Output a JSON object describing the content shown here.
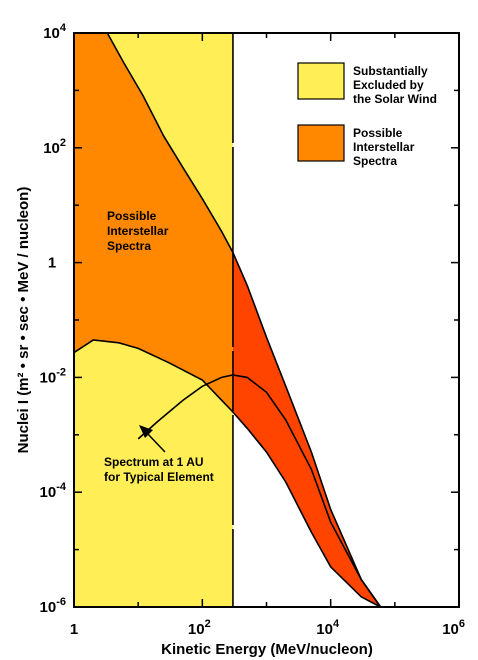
{
  "chart_data": {
    "type": "area",
    "xlabel": "Kinetic Energy (MeV/nucleon)",
    "ylabel": "Nuclei I (m² • sr • sec • MeV / nucleon)",
    "x_scale": "log",
    "y_scale": "log",
    "xlim": [
      1,
      1000000
    ],
    "ylim": [
      1e-06,
      10000
    ],
    "x_ticks": [
      {
        "value": 1,
        "base": "1",
        "exp": ""
      },
      {
        "value": 100,
        "base": "10",
        "exp": "2"
      },
      {
        "value": 10000,
        "base": "10",
        "exp": "4"
      },
      {
        "value": 1000000,
        "base": "10",
        "exp": "6"
      }
    ],
    "y_ticks": [
      {
        "value": 10000,
        "base": "10",
        "exp": "4"
      },
      {
        "value": 100,
        "base": "10",
        "exp": "2"
      },
      {
        "value": 1,
        "base": "1",
        "exp": ""
      },
      {
        "value": 0.01,
        "base": "10",
        "exp": "-2"
      },
      {
        "value": 0.0001,
        "base": "10",
        "exp": "-4"
      },
      {
        "value": 1e-06,
        "base": "10",
        "exp": "-6"
      }
    ],
    "excluded_region_upper_energy": 300,
    "series": [
      {
        "role": "interstellar-upper-bound",
        "points": [
          [
            3.3,
            10000
          ],
          [
            6,
            3000
          ],
          [
            12,
            800
          ],
          [
            25,
            160
          ],
          [
            50,
            45
          ],
          [
            100,
            13
          ],
          [
            200,
            3.5
          ],
          [
            300,
            1.5
          ],
          [
            500,
            0.4
          ],
          [
            1000,
            0.05
          ],
          [
            2000,
            0.007
          ],
          [
            5000,
            0.0005
          ],
          [
            10000,
            5e-05
          ],
          [
            30000,
            3e-06
          ],
          [
            60000,
            1e-06
          ]
        ]
      },
      {
        "role": "interstellar-lower-bound",
        "points": [
          [
            1,
            0.027
          ],
          [
            2,
            0.045
          ],
          [
            5,
            0.04
          ],
          [
            10,
            0.032
          ],
          [
            30,
            0.018
          ],
          [
            100,
            0.009
          ],
          [
            200,
            0.004
          ],
          [
            300,
            0.0025
          ],
          [
            500,
            0.0013
          ],
          [
            1000,
            0.0005
          ],
          [
            2000,
            0.00015
          ],
          [
            5000,
            2e-05
          ],
          [
            10000,
            5e-06
          ],
          [
            30000,
            1.5e-06
          ],
          [
            60000,
            1e-06
          ]
        ]
      },
      {
        "role": "spectrum-at-1-au",
        "points": [
          [
            10,
            0.00085
          ],
          [
            20,
            0.0017
          ],
          [
            50,
            0.004
          ],
          [
            100,
            0.007
          ],
          [
            200,
            0.01
          ],
          [
            300,
            0.011
          ],
          [
            500,
            0.01
          ],
          [
            1000,
            0.0055
          ],
          [
            2000,
            0.0018
          ],
          [
            5000,
            0.00025
          ],
          [
            10000,
            3e-05
          ],
          [
            30000,
            3e-06
          ],
          [
            60000,
            1e-06
          ]
        ]
      }
    ],
    "legend": [
      {
        "color": "#FFEE55",
        "label_lines": [
          "Substantially",
          "Excluded by",
          "the Solar Wind"
        ]
      },
      {
        "color": "#FF8800",
        "label_lines": [
          "Possible",
          "Interstellar",
          "Spectra"
        ]
      }
    ],
    "annotations": {
      "region_label_lines": [
        "Possible",
        "Interstellar",
        "Spectra"
      ],
      "spectrum_label_lines": [
        "Spectrum at 1 AU",
        "for Typical Element"
      ]
    },
    "colors": {
      "excluded": "#FFEE55",
      "interstellar": "#FF8800",
      "interstellar_above_cutoff": "#FF4400"
    }
  }
}
